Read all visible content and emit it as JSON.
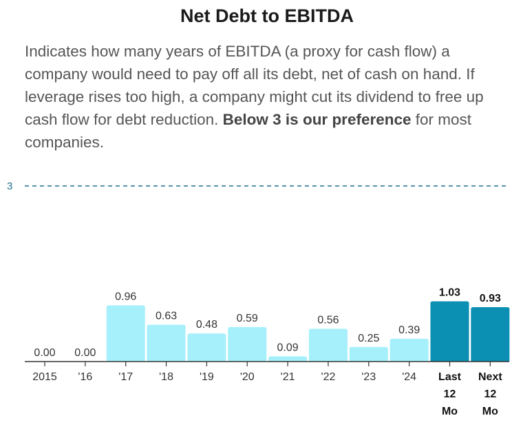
{
  "page": {
    "title": "Net Debt to EBITDA",
    "description_pre": "Indicates how many years of EBITDA (a proxy for cash flow) a company would need to pay off all its debt, net of cash on hand. If leverage rises too high, a company might cut its dividend to free up cash flow for debt reduction. ",
    "description_bold": "Below 3 is our preference",
    "description_post": " for most companies."
  },
  "colors": {
    "historical_bar": "#a6f0fb",
    "projection_bar": "#0b8fb3",
    "reference_line": "#1f6f8b",
    "axis": "#333333"
  },
  "chart_data": {
    "type": "bar",
    "title": "Net Debt to EBITDA",
    "xlabel": "",
    "ylabel": "",
    "ylim": [
      0,
      3
    ],
    "reference_line": {
      "value": 3,
      "label": "3",
      "style": "dashed"
    },
    "categories": [
      [
        "2015"
      ],
      [
        "'16"
      ],
      [
        "'17"
      ],
      [
        "'18"
      ],
      [
        "'19"
      ],
      [
        "'20"
      ],
      [
        "'21"
      ],
      [
        "'22"
      ],
      [
        "'23"
      ],
      [
        "'24"
      ],
      [
        "Last",
        "12",
        "Mo"
      ],
      [
        "Next",
        "12",
        "Mo"
      ]
    ],
    "values": [
      0.0,
      0.0,
      0.96,
      0.63,
      0.48,
      0.59,
      0.09,
      0.56,
      0.25,
      0.39,
      1.03,
      0.93
    ],
    "value_labels": [
      "0.00",
      "0.00",
      "0.96",
      "0.63",
      "0.48",
      "0.59",
      "0.09",
      "0.56",
      "0.25",
      "0.39",
      "1.03",
      "0.93"
    ],
    "highlighted": [
      false,
      false,
      false,
      false,
      false,
      false,
      false,
      false,
      false,
      false,
      true,
      true
    ],
    "grid": false
  }
}
